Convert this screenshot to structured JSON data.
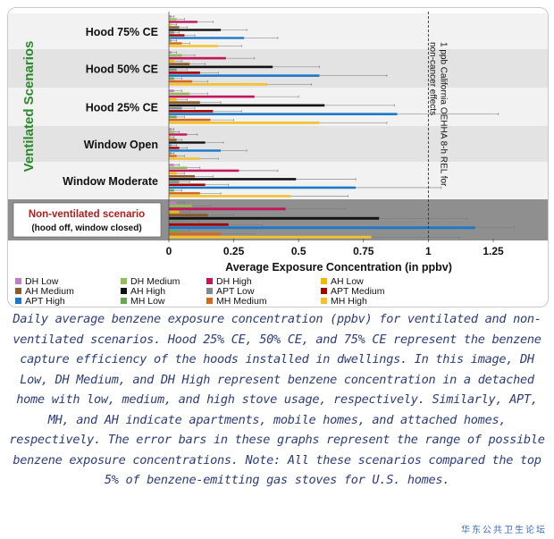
{
  "caption": "Daily average benzene exposure concentration (ppbv) for ventilated and non-ventilated scenarios. Hood 25% CE, 50% CE, and 75% CE represent the benzene capture efficiency of the hoods installed in dwellings. In this image, DH Low, DH Medium, and DH High represent benzene concentration in a detached home with low, medium, and high stove usage, respectively. Similarly, APT, MH, and AH indicate apartments, mobile homes, and attached homes, respectively. The error bars in these graphs represent the range of possible benzene exposure concentrations. Note: All these scenarios compared the top 5% of benzene-emitting gas stoves for U.S. homes.",
  "watermark": "华东公共卫生论坛",
  "chart_data": {
    "type": "bar",
    "orientation": "horizontal",
    "xlabel": "Average Exposure Concentration (in ppbv)",
    "xlim": [
      0,
      1.4
    ],
    "xticks": [
      0,
      0.25,
      0.5,
      0.75,
      1,
      1.25
    ],
    "xtick_labels": [
      "0",
      "0.25",
      "0.5",
      "0.75",
      "1",
      "1.25"
    ],
    "group_label_ventilated": "Ventilated Scenarios",
    "categories": [
      "Hood 75% CE",
      "Hood 50% CE",
      "Hood 25% CE",
      "Window Open",
      "Window Moderate",
      "Non-ventilated scenario"
    ],
    "category_sublabel_last": "(hood off, window closed)",
    "reference_line": {
      "x": 1,
      "label": "1 ppb California OEHHA 8-h REL for non-cancer effects"
    },
    "series": [
      {
        "name": "DH Low",
        "color": "#c77ac7",
        "values": [
          0.01,
          0.01,
          0.02,
          0.01,
          0.02,
          0.03
        ],
        "err_high": [
          0.02,
          0.03,
          0.05,
          0.02,
          0.04,
          0.06
        ]
      },
      {
        "name": "DH Medium",
        "color": "#8fbe5a",
        "values": [
          0.03,
          0.05,
          0.08,
          0.02,
          0.07,
          0.09
        ],
        "err_high": [
          0.06,
          0.1,
          0.15,
          0.04,
          0.12,
          0.16
        ]
      },
      {
        "name": "DH High",
        "color": "#c2185b",
        "values": [
          0.11,
          0.22,
          0.33,
          0.07,
          0.27,
          0.45
        ],
        "err_high": [
          0.17,
          0.33,
          0.5,
          0.11,
          0.42,
          0.68
        ]
      },
      {
        "name": "AH Low",
        "color": "#f5b800",
        "values": [
          0.01,
          0.02,
          0.03,
          0.01,
          0.03,
          0.04
        ],
        "err_high": [
          0.03,
          0.05,
          0.07,
          0.02,
          0.06,
          0.08
        ]
      },
      {
        "name": "AH Medium",
        "color": "#8b5a2b",
        "values": [
          0.04,
          0.08,
          0.12,
          0.03,
          0.1,
          0.15
        ],
        "err_high": [
          0.07,
          0.14,
          0.2,
          0.05,
          0.17,
          0.25
        ]
      },
      {
        "name": "AH High",
        "color": "#111111",
        "values": [
          0.2,
          0.4,
          0.6,
          0.14,
          0.49,
          0.81
        ],
        "err_high": [
          0.3,
          0.58,
          0.87,
          0.21,
          0.72,
          1.15
        ]
      },
      {
        "name": "APT Low",
        "color": "#7f8c8d",
        "values": [
          0.02,
          0.03,
          0.05,
          0.01,
          0.04,
          0.06
        ],
        "err_high": [
          0.04,
          0.07,
          0.1,
          0.03,
          0.08,
          0.12
        ]
      },
      {
        "name": "APT Medium",
        "color": "#a50000",
        "values": [
          0.06,
          0.12,
          0.17,
          0.04,
          0.14,
          0.23
        ],
        "err_high": [
          0.1,
          0.19,
          0.28,
          0.07,
          0.23,
          0.36
        ]
      },
      {
        "name": "APT High",
        "color": "#1e78c8",
        "values": [
          0.29,
          0.58,
          0.88,
          0.2,
          0.72,
          1.18
        ],
        "err_high": [
          0.42,
          0.84,
          1.27,
          0.3,
          1.05,
          1.33
        ]
      },
      {
        "name": "MH Low",
        "color": "#6aa84f",
        "values": [
          0.01,
          0.02,
          0.03,
          0.01,
          0.02,
          0.04
        ],
        "err_high": [
          0.03,
          0.05,
          0.06,
          0.02,
          0.05,
          0.08
        ]
      },
      {
        "name": "MH Medium",
        "color": "#d2691e",
        "values": [
          0.05,
          0.09,
          0.16,
          0.03,
          0.12,
          0.2
        ],
        "err_high": [
          0.08,
          0.15,
          0.25,
          0.06,
          0.2,
          0.33
        ]
      },
      {
        "name": "MH High",
        "color": "#f2c12e",
        "values": [
          0.19,
          0.38,
          0.58,
          0.12,
          0.47,
          0.78
        ],
        "err_high": [
          0.28,
          0.55,
          0.84,
          0.19,
          0.69,
          1.12
        ]
      }
    ],
    "legend_placement": "bottom",
    "grid": false
  }
}
